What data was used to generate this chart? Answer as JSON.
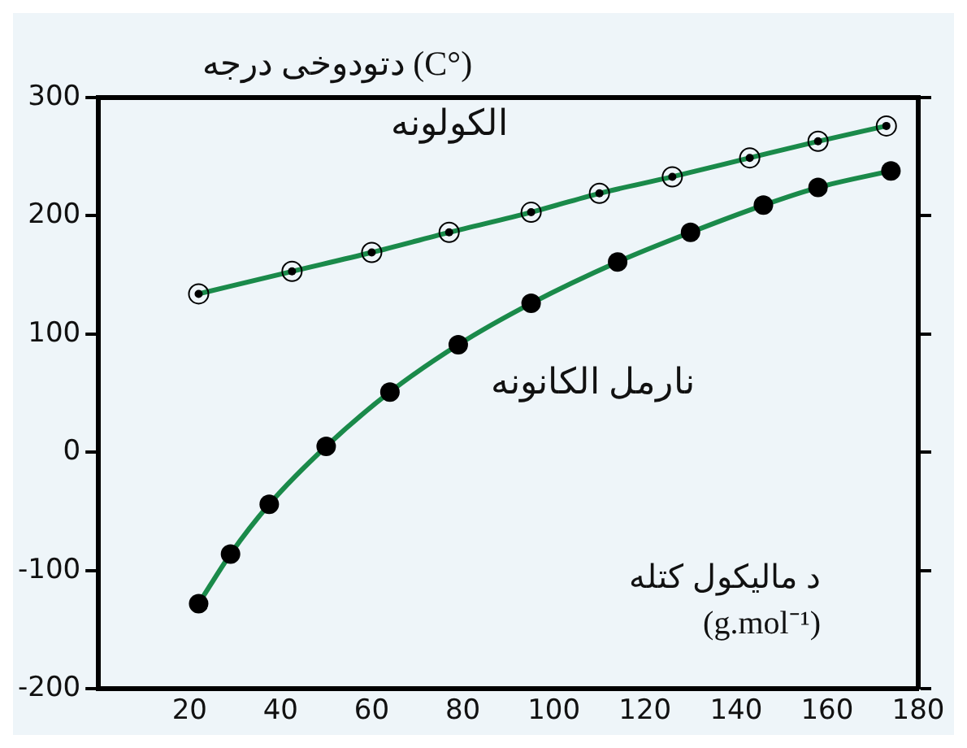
{
  "chart_data": {
    "type": "line",
    "ylabel": "(°C) دتودوخی درجه",
    "xlabel": "د ماليکول کتله (g.mol⁻¹)",
    "xlim": [
      0,
      180
    ],
    "xticks": [
      20,
      40,
      60,
      80,
      100,
      120,
      140,
      160,
      180
    ],
    "ylim": [
      -200,
      300
    ],
    "yticks": [
      -200,
      -100,
      0,
      100,
      200,
      300
    ],
    "grid": false,
    "legend": false,
    "marker": "circle",
    "line_style": "solid",
    "series": [
      {
        "name": "الکولونه",
        "color": "#1a8a4a",
        "x": [
          22,
          42.5,
          60,
          77,
          95,
          110,
          126,
          143,
          158,
          173
        ],
        "values": [
          134,
          153,
          169,
          186,
          203,
          219,
          233,
          249,
          263,
          276
        ]
      },
      {
        "name": "نارمل الکانونه",
        "color": "#1a8a4a",
        "x": [
          22,
          29,
          37.5,
          50,
          64,
          79,
          95,
          114,
          130,
          146,
          158,
          174
        ],
        "values": [
          -128,
          -86,
          -44,
          5,
          51,
          91,
          126,
          161,
          186,
          209,
          224,
          238
        ]
      }
    ]
  }
}
